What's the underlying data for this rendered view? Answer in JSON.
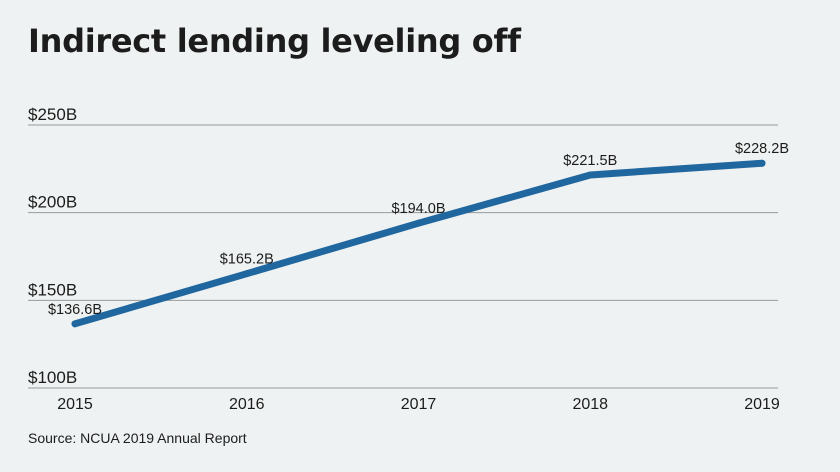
{
  "chart_data": {
    "type": "line",
    "title": "Indirect lending leveling off",
    "source": "Source: NCUA 2019 Annual Report",
    "categories": [
      "2015",
      "2016",
      "2017",
      "2018",
      "2019"
    ],
    "series": [
      {
        "values": [
          136.6,
          165.2,
          194.0,
          221.5,
          228.2
        ],
        "labels": [
          "$136.6B",
          "$165.2B",
          "$194.0B",
          "$221.5B",
          "$228.2B"
        ],
        "color": "#21679f"
      }
    ],
    "yticks": [
      {
        "value": 100,
        "label": "$100B"
      },
      {
        "value": 150,
        "label": "$150B"
      },
      {
        "value": 200,
        "label": "$200B"
      },
      {
        "value": 250,
        "label": "$250B"
      }
    ],
    "ylim": [
      100,
      250
    ],
    "grid": true,
    "colors": {
      "background": "#eff2f2",
      "gridline": "#9a9a9a",
      "line": "#21679f",
      "text": "#1c1c1c"
    }
  }
}
